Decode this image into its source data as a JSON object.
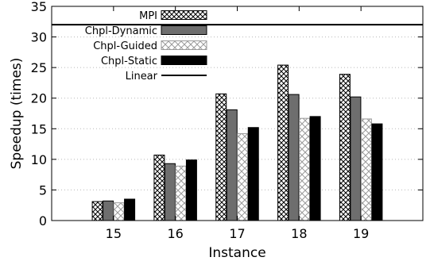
{
  "chart_data": {
    "type": "bar",
    "title": "",
    "xlabel": "Instance",
    "ylabel": "Speedup (times)",
    "ylim": [
      0,
      35
    ],
    "yticks": [
      0,
      5,
      10,
      15,
      20,
      25,
      30,
      35
    ],
    "grid": true,
    "legend_position": "top-left",
    "categories": [
      "15",
      "16",
      "17",
      "18",
      "19"
    ],
    "series": [
      {
        "name": "MPI",
        "values": [
          3.1,
          10.7,
          20.7,
          25.4,
          23.9
        ],
        "pattern": "crosshatch",
        "color": "#000000"
      },
      {
        "name": "Chpl-Dynamic",
        "values": [
          3.2,
          9.3,
          18.1,
          20.6,
          20.2
        ],
        "pattern": "solid",
        "color": "#6e6e6e"
      },
      {
        "name": "Chpl-Guided",
        "values": [
          2.9,
          8.9,
          14.2,
          16.7,
          16.6
        ],
        "pattern": "light-crosshatch",
        "color": "#9a9a9a"
      },
      {
        "name": "Chpl-Static",
        "values": [
          3.5,
          9.9,
          15.2,
          17.0,
          15.8
        ],
        "pattern": "solid",
        "color": "#000000"
      }
    ],
    "reference_lines": [
      {
        "name": "Linear",
        "y": 32,
        "color": "#000000"
      }
    ]
  }
}
